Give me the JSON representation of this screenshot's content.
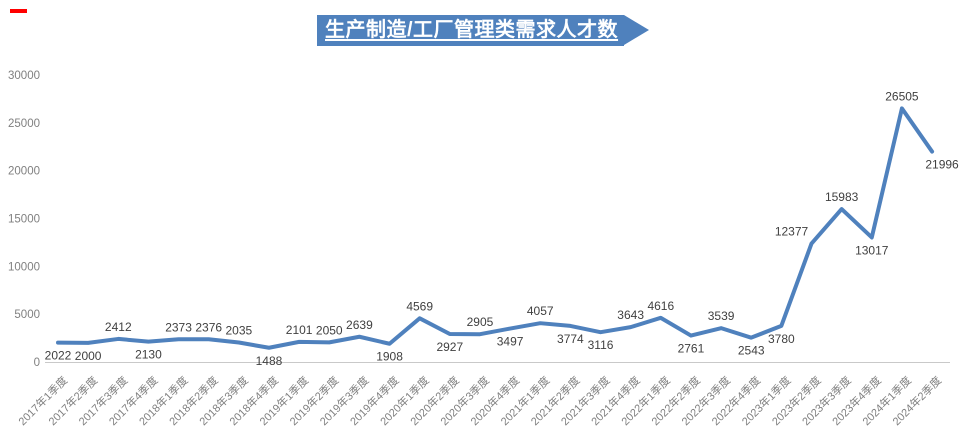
{
  "page": {
    "background": "#ffffff"
  },
  "annotation_mark": {
    "color": "#ff0000"
  },
  "title": {
    "text": "生产制造/工厂管理类需求人才数",
    "bg_color": "#4f81bd",
    "text_color": "#ffffff"
  },
  "chart_data": {
    "type": "line",
    "title": "生产制造/工厂管理类需求人才数",
    "categories": [
      "2017年1季度",
      "2017年2季度",
      "2017年3季度",
      "2017年4季度",
      "2018年1季度",
      "2018年2季度",
      "2018年3季度",
      "2018年4季度",
      "2019年1季度",
      "2019年2季度",
      "2019年3季度",
      "2019年4季度",
      "2020年1季度",
      "2020年2季度",
      "2020年3季度",
      "2020年4季度",
      "2021年1季度",
      "2021年2季度",
      "2021年3季度",
      "2021年4季度",
      "2022年1季度",
      "2022年2季度",
      "2022年3季度",
      "2022年4季度",
      "2023年1季度",
      "2023年2季度",
      "2023年3季度",
      "2023年4季度",
      "2024年1季度",
      "2024年2季度"
    ],
    "values": [
      2022,
      2000,
      2412,
      2130,
      2373,
      2376,
      2035,
      1488,
      2101,
      2050,
      2639,
      1908,
      4569,
      2927,
      2905,
      3497,
      4057,
      3774,
      3116,
      3643,
      4616,
      2761,
      3539,
      2543,
      3780,
      12377,
      15983,
      13017,
      26505,
      21996
    ],
    "xlabel": "",
    "ylabel": "",
    "ylim": [
      0,
      30000
    ],
    "yticks": [
      0,
      5000,
      10000,
      15000,
      20000,
      25000,
      30000
    ],
    "grid": false,
    "legend": false,
    "data_labels": true,
    "line_color": "#4f81bd",
    "axis_color": "#c9c9c9",
    "tick_label_color": "#808080",
    "data_label_color": "#404040",
    "label_positions": [
      "below",
      "below",
      "above",
      "below",
      "above",
      "above",
      "above",
      "below",
      "above",
      "above",
      "above",
      "below",
      "above",
      "below",
      "above",
      "below",
      "above",
      "below",
      "below",
      "above",
      "above",
      "below",
      "above",
      "below",
      "below",
      "above",
      "above",
      "below",
      "above",
      "below"
    ],
    "label_dx": {
      "25": -20,
      "29": 10
    }
  }
}
